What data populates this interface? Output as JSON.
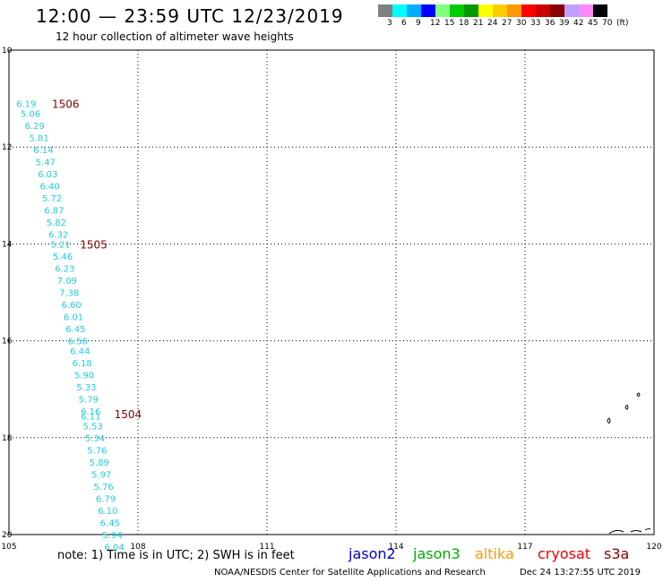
{
  "header": {
    "title": "12:00 — 23:59 UTC 12/23/2019",
    "subtitle": "12 hour collection of altimeter wave heights"
  },
  "legend": {
    "colors": [
      "#808080",
      "#00ffff",
      "#00b0ff",
      "#0000ff",
      "#80ff80",
      "#00cc00",
      "#009900",
      "#ffff00",
      "#ffcc00",
      "#ff9900",
      "#ff0000",
      "#cc0000",
      "#880000",
      "#c0a0ff",
      "#ff88ff",
      "#000000"
    ],
    "labels": [
      "3",
      "6",
      "9",
      "12",
      "15",
      "18",
      "21",
      "24",
      "27",
      "30",
      "33",
      "36",
      "39",
      "42",
      "45",
      "70",
      "(ft)"
    ]
  },
  "map": {
    "lat_ticks": [
      "10",
      "12",
      "14",
      "16",
      "18",
      "20"
    ],
    "lon_ticks": [
      "105",
      "108",
      "111",
      "114",
      "117",
      "120"
    ],
    "lat_range": [
      -20,
      -10
    ],
    "lon_range": [
      105,
      120
    ],
    "grid": "dotted",
    "wave_color": "#22ccdd",
    "time_color": "#800000"
  },
  "chart_data": {
    "type": "scatter",
    "title": "12:00 — 23:59 UTC 12/23/2019",
    "subtitle": "12 hour collection of altimeter wave heights",
    "xlabel": "",
    "ylabel": "",
    "xlim": [
      105,
      120
    ],
    "ylim": [
      -20,
      -10
    ],
    "units": "(ft)",
    "wave_heights": [
      {
        "lon": 105.4,
        "lat": -11.1,
        "value": "6.19"
      },
      {
        "lon": 105.5,
        "lat": -11.3,
        "value": "5.06"
      },
      {
        "lon": 105.6,
        "lat": -11.55,
        "value": "6.29"
      },
      {
        "lon": 105.7,
        "lat": -11.8,
        "value": "5.81"
      },
      {
        "lon": 105.8,
        "lat": -12.05,
        "value": "6.14"
      },
      {
        "lon": 105.85,
        "lat": -12.3,
        "value": "5.47"
      },
      {
        "lon": 105.9,
        "lat": -12.55,
        "value": "6.03"
      },
      {
        "lon": 105.95,
        "lat": -12.8,
        "value": "6.40"
      },
      {
        "lon": 106.0,
        "lat": -13.05,
        "value": "5.72"
      },
      {
        "lon": 106.05,
        "lat": -13.3,
        "value": "6.87"
      },
      {
        "lon": 106.1,
        "lat": -13.55,
        "value": "5.82"
      },
      {
        "lon": 106.15,
        "lat": -13.8,
        "value": "6.32"
      },
      {
        "lon": 106.2,
        "lat": -14.0,
        "value": "5.21"
      },
      {
        "lon": 106.25,
        "lat": -14.25,
        "value": "5.46"
      },
      {
        "lon": 106.3,
        "lat": -14.5,
        "value": "6.23"
      },
      {
        "lon": 106.35,
        "lat": -14.75,
        "value": "7.09"
      },
      {
        "lon": 106.4,
        "lat": -15.0,
        "value": "7.38"
      },
      {
        "lon": 106.45,
        "lat": -15.25,
        "value": "6.60"
      },
      {
        "lon": 106.5,
        "lat": -15.5,
        "value": "6.01"
      },
      {
        "lon": 106.55,
        "lat": -15.75,
        "value": "6.45"
      },
      {
        "lon": 106.6,
        "lat": -16.0,
        "value": "6.56"
      },
      {
        "lon": 106.65,
        "lat": -16.2,
        "value": "6.44"
      },
      {
        "lon": 106.7,
        "lat": -16.45,
        "value": "6.18"
      },
      {
        "lon": 106.75,
        "lat": -16.7,
        "value": "5.90"
      },
      {
        "lon": 106.8,
        "lat": -16.95,
        "value": "5.33"
      },
      {
        "lon": 106.85,
        "lat": -17.2,
        "value": "5.79"
      },
      {
        "lon": 106.9,
        "lat": -17.45,
        "value": "6.16"
      },
      {
        "lon": 106.9,
        "lat": -17.55,
        "value": "6.11"
      },
      {
        "lon": 106.95,
        "lat": -17.75,
        "value": "5.53"
      },
      {
        "lon": 107.0,
        "lat": -18.0,
        "value": "5.34"
      },
      {
        "lon": 107.05,
        "lat": -18.25,
        "value": "5.76"
      },
      {
        "lon": 107.1,
        "lat": -18.5,
        "value": "5.89"
      },
      {
        "lon": 107.15,
        "lat": -18.75,
        "value": "5.97"
      },
      {
        "lon": 107.2,
        "lat": -19.0,
        "value": "5.76"
      },
      {
        "lon": 107.25,
        "lat": -19.25,
        "value": "6.79"
      },
      {
        "lon": 107.3,
        "lat": -19.5,
        "value": "6.10"
      },
      {
        "lon": 107.35,
        "lat": -19.75,
        "value": "6.45"
      },
      {
        "lon": 107.4,
        "lat": -20.0,
        "value": "5.94"
      },
      {
        "lon": 107.45,
        "lat": -20.25,
        "value": "6.04"
      }
    ],
    "time_labels": [
      {
        "lon": 106.0,
        "lat": -11.1,
        "value": "1506"
      },
      {
        "lon": 106.65,
        "lat": -14.0,
        "value": "1505"
      },
      {
        "lon": 107.45,
        "lat": -17.5,
        "value": "1504"
      }
    ]
  },
  "footer": {
    "note": "note: 1) Time is in UTC; 2) SWH is in feet",
    "satellites": [
      {
        "name": "jason2",
        "color": "#0000cc"
      },
      {
        "name": "jason3",
        "color": "#00aa00"
      },
      {
        "name": "altika",
        "color": "#ff9900"
      },
      {
        "name": "cryosat",
        "color": "#ee0000"
      },
      {
        "name": "s3a",
        "color": "#880000"
      }
    ],
    "credit": "NOAA/NESDIS Center for Satellite Applications and Research",
    "timestamp": "Dec 24 13:27:55 UTC 2019"
  }
}
